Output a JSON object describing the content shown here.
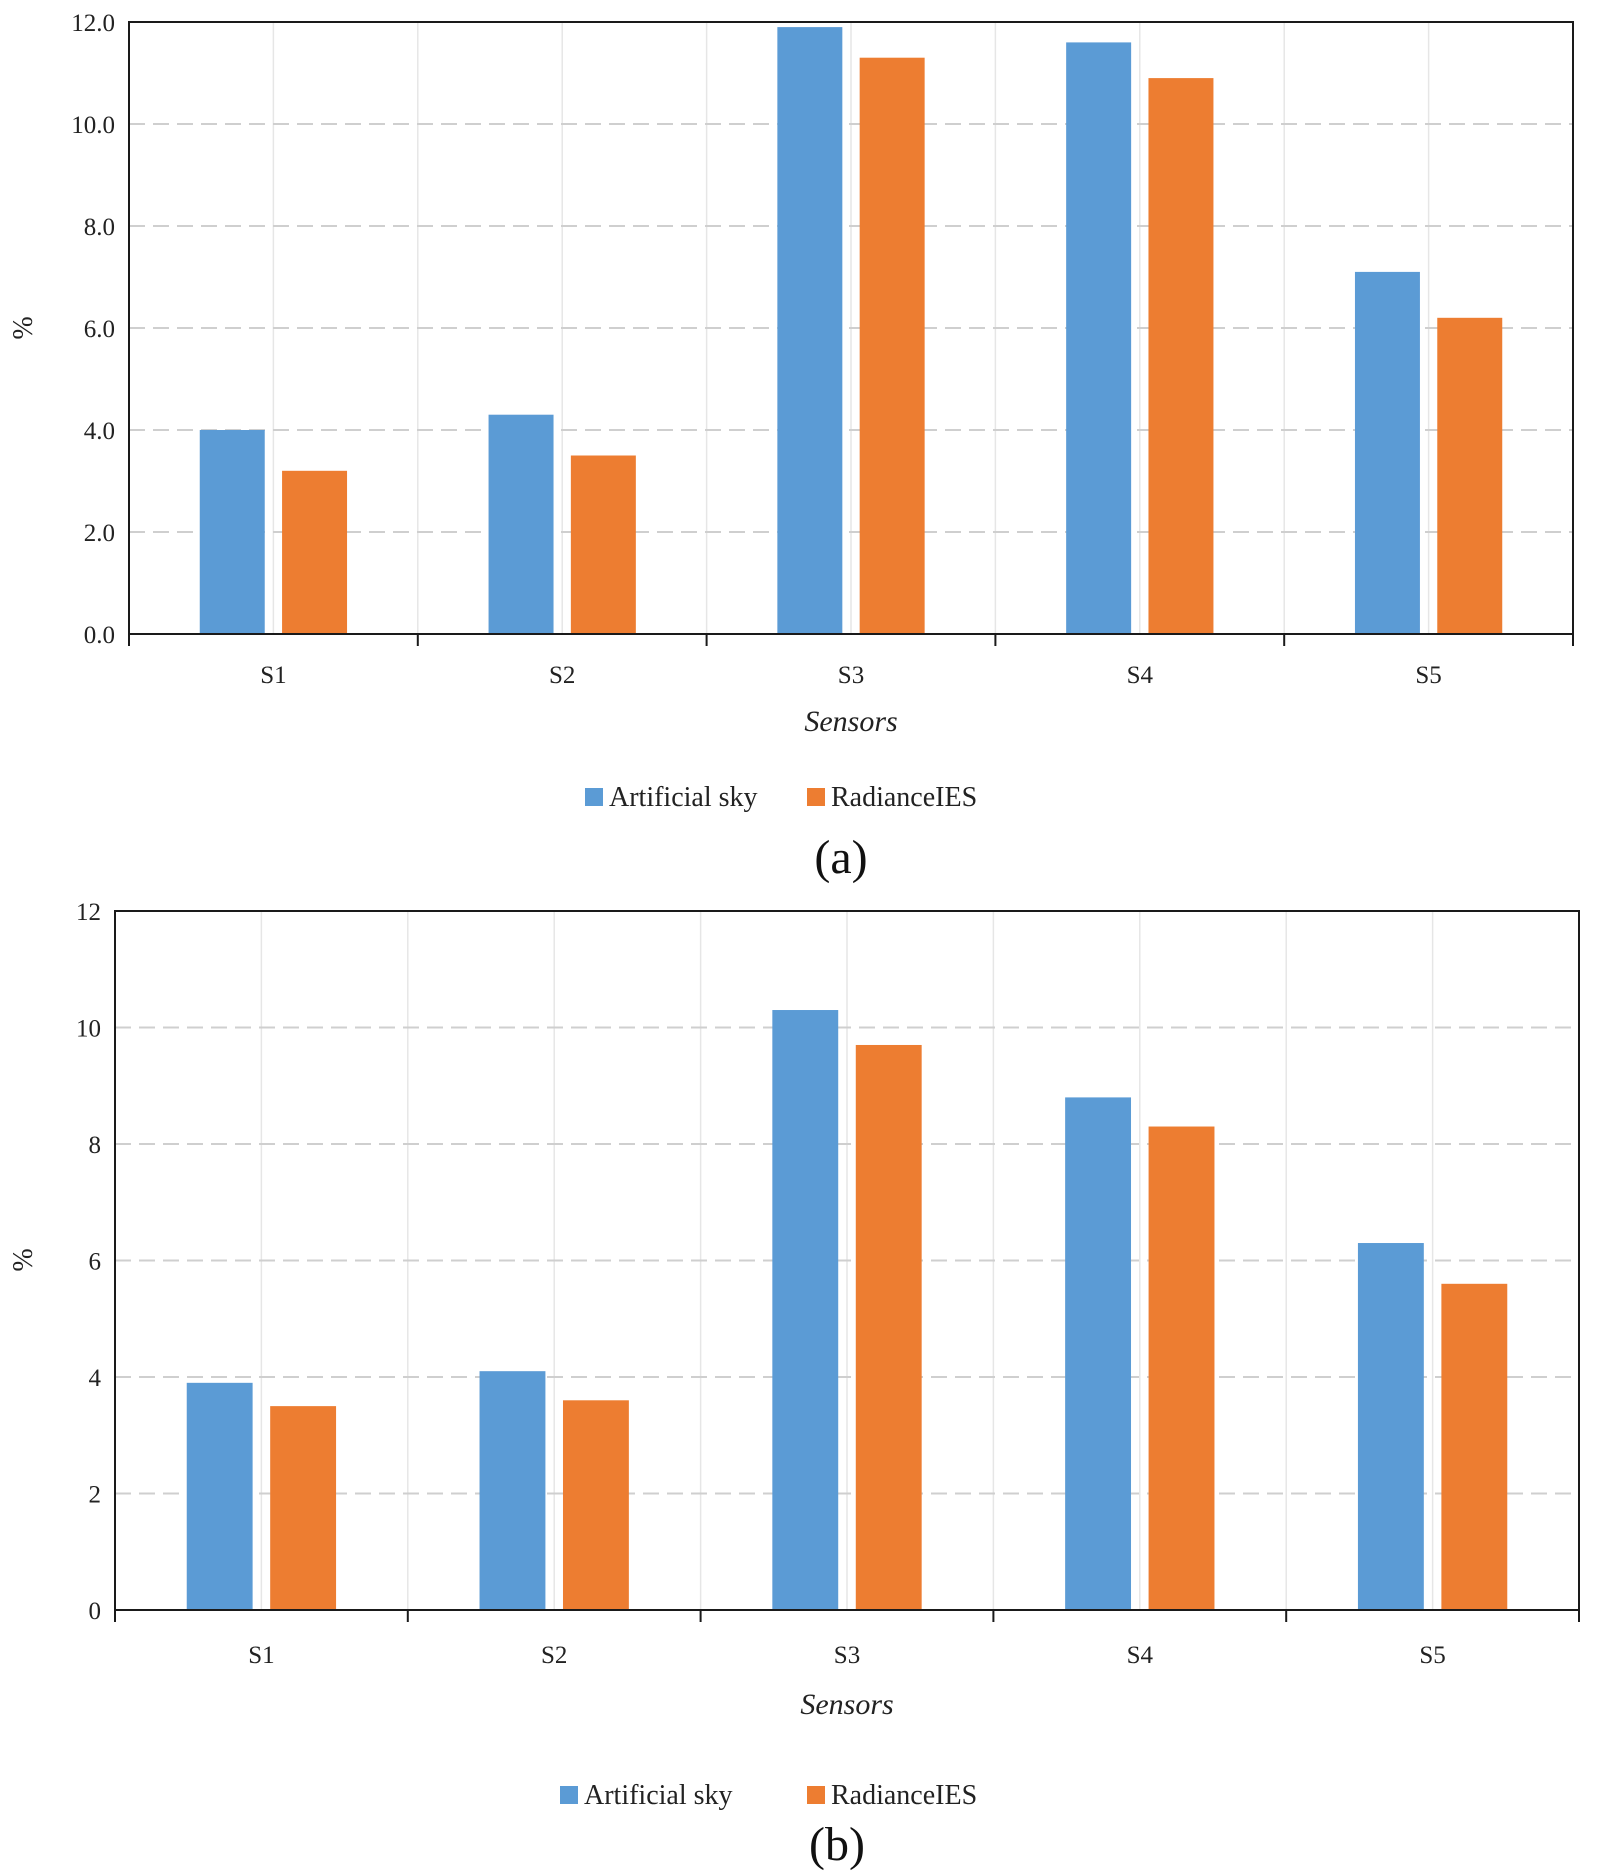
{
  "colors": {
    "artificial_sky": "#5b9bd5",
    "radiance_ies": "#ed7d31"
  },
  "chart_data": [
    {
      "type": "bar",
      "panel_label": "(a)",
      "categories": [
        "S1",
        "S2",
        "S3",
        "S4",
        "S5"
      ],
      "series": [
        {
          "name": "Artificial sky",
          "values": [
            4.0,
            4.3,
            11.9,
            11.6,
            7.1
          ]
        },
        {
          "name": "RadianceIES",
          "values": [
            3.2,
            3.5,
            11.3,
            10.9,
            6.2
          ]
        }
      ],
      "xlabel": "Sensors",
      "ylabel": "%",
      "ylim": [
        0,
        12
      ],
      "yticks": [
        "0.0",
        "2.0",
        "4.0",
        "6.0",
        "8.0",
        "10.0",
        "12.0"
      ],
      "grid": "horizontal dashed, vertical light",
      "legend": "bottom-center"
    },
    {
      "type": "bar",
      "panel_label": "(b)",
      "categories": [
        "S1",
        "S2",
        "S3",
        "S4",
        "S5"
      ],
      "series": [
        {
          "name": "Artificial sky",
          "values": [
            3.9,
            4.1,
            10.3,
            8.8,
            6.3
          ]
        },
        {
          "name": "RadianceIES",
          "values": [
            3.5,
            3.6,
            9.7,
            8.3,
            5.6
          ]
        }
      ],
      "xlabel": "Sensors",
      "ylabel": "%",
      "ylim": [
        0,
        12
      ],
      "yticks": [
        "0",
        "2",
        "4",
        "6",
        "8",
        "10",
        "12"
      ],
      "grid": "horizontal dashed, vertical light",
      "legend": "bottom-center"
    }
  ]
}
